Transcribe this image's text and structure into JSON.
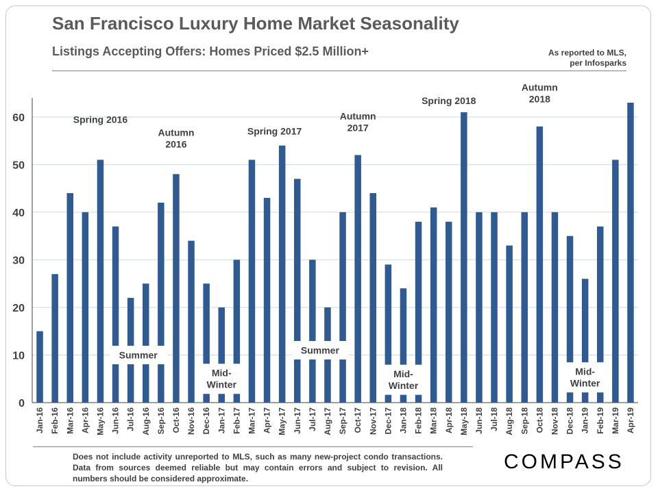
{
  "header": {
    "title": "San Francisco Luxury Home Market Seasonality",
    "subtitle": "Listings Accepting Offers: Homes Priced $2.5 Million+",
    "source_line1": "As reported to MLS,",
    "source_line2": "per Infosparks"
  },
  "footer": {
    "note": "Does not include activity unreported to MLS, such as many new-project condo transactions. Data from sources deemed reliable but may contain errors and subject to revision.  All numbers should be considered approximate.",
    "logo": "COMPASS"
  },
  "colors": {
    "bar": "#2f5b92",
    "grid": "#c9dbe7",
    "text": "#404040"
  },
  "chart_data": {
    "type": "bar",
    "title": "San Francisco Luxury Home Market Seasonality",
    "subtitle": "Listings Accepting Offers: Homes Priced $2.5 Million+",
    "xlabel": "",
    "ylabel": "",
    "ylim": [
      0,
      64
    ],
    "yticks": [
      0,
      10,
      20,
      30,
      40,
      50,
      60
    ],
    "grid": true,
    "categories": [
      "Jan-16",
      "Feb-16",
      "Mar-16",
      "Apr-16",
      "May-16",
      "Jun-16",
      "Jul-16",
      "Aug-16",
      "Sep-16",
      "Oct-16",
      "Nov-16",
      "Dec-16",
      "Jan-17",
      "Feb-17",
      "Mar-17",
      "Apr-17",
      "May-17",
      "Jun-17",
      "Jul-17",
      "Aug-17",
      "Sep-17",
      "Oct-17",
      "Nov-17",
      "Dec-17",
      "Jan-18",
      "Feb-18",
      "Mar-18",
      "Apr-18",
      "May-18",
      "Jun-18",
      "Jul-18",
      "Aug-18",
      "Sep-18",
      "Oct-18",
      "Nov-18",
      "Dec-18",
      "Jan-19",
      "Feb-19",
      "Mar-19",
      "Apr-19"
    ],
    "values": [
      15,
      27,
      44,
      40,
      51,
      37,
      22,
      25,
      42,
      48,
      34,
      25,
      20,
      30,
      51,
      43,
      54,
      47,
      30,
      20,
      40,
      52,
      44,
      29,
      24,
      38,
      41,
      38,
      61,
      40,
      40,
      33,
      40,
      58,
      40,
      35,
      26,
      37,
      51,
      63
    ],
    "annotations": [
      {
        "text": [
          "Spring 2016"
        ],
        "span": [
          4,
          4
        ],
        "y": 59.5,
        "boxed": false
      },
      {
        "text": [
          "Autumn",
          "2016"
        ],
        "span": [
          9,
          9
        ],
        "y": 55.5,
        "boxed": false
      },
      {
        "text": [
          "Spring 2017"
        ],
        "span": [
          15.5,
          15.5
        ],
        "y": 57,
        "boxed": false
      },
      {
        "text": [
          "Autumn",
          "2017"
        ],
        "span": [
          21,
          21
        ],
        "y": 59,
        "boxed": false
      },
      {
        "text": [
          "Spring 2018"
        ],
        "span": [
          27,
          27
        ],
        "y": 63.4,
        "boxed": false
      },
      {
        "text": [
          "Autumn",
          "2018"
        ],
        "span": [
          33,
          33
        ],
        "y": 65,
        "boxed": false
      },
      {
        "text": [
          "Summer"
        ],
        "span": [
          5,
          8
        ],
        "y": 10,
        "boxed": true
      },
      {
        "text": [
          "Mid-",
          "Winter"
        ],
        "span": [
          11,
          13
        ],
        "y": 5,
        "boxed": true
      },
      {
        "text": [
          "Summer"
        ],
        "span": [
          17,
          20
        ],
        "y": 11,
        "boxed": true
      },
      {
        "text": [
          "Mid-",
          "Winter"
        ],
        "span": [
          23,
          25
        ],
        "y": 4.8,
        "boxed": true
      },
      {
        "text": [
          "Mid-",
          "Winter"
        ],
        "span": [
          35,
          37
        ],
        "y": 5.3,
        "boxed": true
      }
    ]
  }
}
